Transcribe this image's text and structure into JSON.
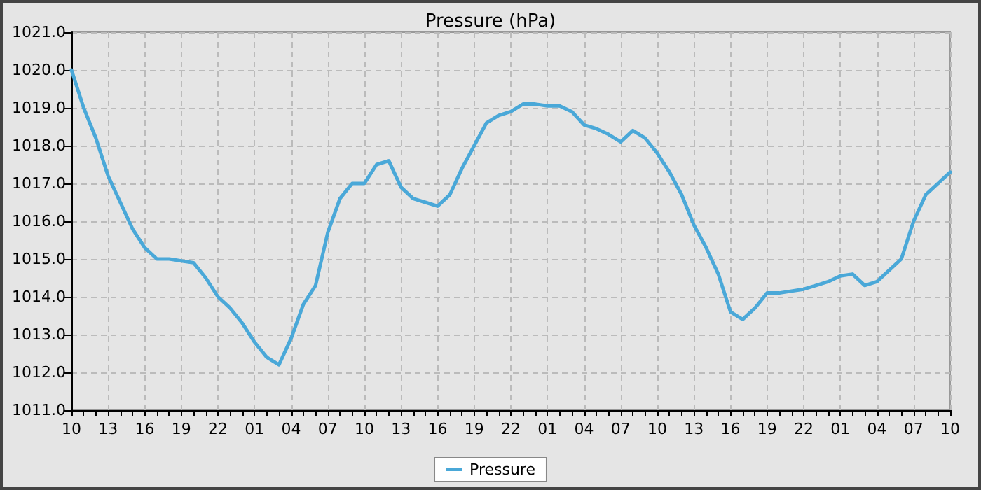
{
  "chart_data": {
    "type": "line",
    "title": "Pressure (hPa)",
    "categories": [
      "10",
      null,
      null,
      "13",
      null,
      null,
      "16",
      null,
      null,
      "19",
      null,
      null,
      "22",
      null,
      null,
      "01",
      null,
      null,
      "04",
      null,
      null,
      "07",
      null,
      null,
      "10",
      null,
      null,
      "13",
      null,
      null,
      "16",
      null,
      null,
      "19",
      null,
      null,
      "22",
      null,
      null,
      "01",
      null,
      null,
      "04",
      null,
      null,
      "07",
      null,
      null,
      "10",
      null,
      null,
      "13",
      null,
      null,
      "16",
      null,
      null,
      "19",
      null,
      null,
      "22",
      null,
      null,
      "01",
      null,
      null,
      "04",
      null,
      null,
      "07",
      null,
      null,
      "10"
    ],
    "series": [
      {
        "name": "Pressure",
        "color": "#4aa8d8",
        "values": [
          1020.0,
          1019.0,
          1018.2,
          1017.2,
          1016.5,
          1015.8,
          1015.3,
          1015.0,
          1015.0,
          1014.95,
          1014.9,
          1014.5,
          1014.0,
          1013.7,
          1013.3,
          1012.8,
          1012.4,
          1012.2,
          1012.9,
          1013.8,
          1014.3,
          1015.7,
          1016.6,
          1017.0,
          1017.0,
          1017.5,
          1017.6,
          1016.9,
          1016.6,
          1016.5,
          1016.4,
          1016.7,
          1017.4,
          1018.0,
          1018.6,
          1018.8,
          1018.9,
          1019.1,
          1019.1,
          1019.05,
          1019.05,
          1018.9,
          1018.55,
          1018.45,
          1018.3,
          1018.1,
          1018.4,
          1018.2,
          1017.8,
          1017.3,
          1016.7,
          1015.9,
          1015.3,
          1014.6,
          1013.6,
          1013.4,
          1013.7,
          1014.1,
          1014.1,
          1014.15,
          1014.2,
          1014.3,
          1014.4,
          1014.55,
          1014.6,
          1014.3,
          1014.4,
          1014.7,
          1015.0,
          1016.0,
          1016.7,
          1017.0,
          1017.3
        ]
      }
    ],
    "ylim": [
      1011,
      1021
    ],
    "yticks": [
      {
        "value": 1011,
        "label": "1011.0"
      },
      {
        "value": 1012,
        "label": "1012.0"
      },
      {
        "value": 1013,
        "label": "1013.0"
      },
      {
        "value": 1014,
        "label": "1014.0"
      },
      {
        "value": 1015,
        "label": "1015.0"
      },
      {
        "value": 1016,
        "label": "1016.0"
      },
      {
        "value": 1017,
        "label": "1017.0"
      },
      {
        "value": 1018,
        "label": "1018.0"
      },
      {
        "value": 1019,
        "label": "1019.0"
      },
      {
        "value": 1020,
        "label": "1020.0"
      },
      {
        "value": 1021,
        "label": "1021.0"
      }
    ],
    "grid": true,
    "legend": "bottom",
    "line_style": "solid"
  }
}
